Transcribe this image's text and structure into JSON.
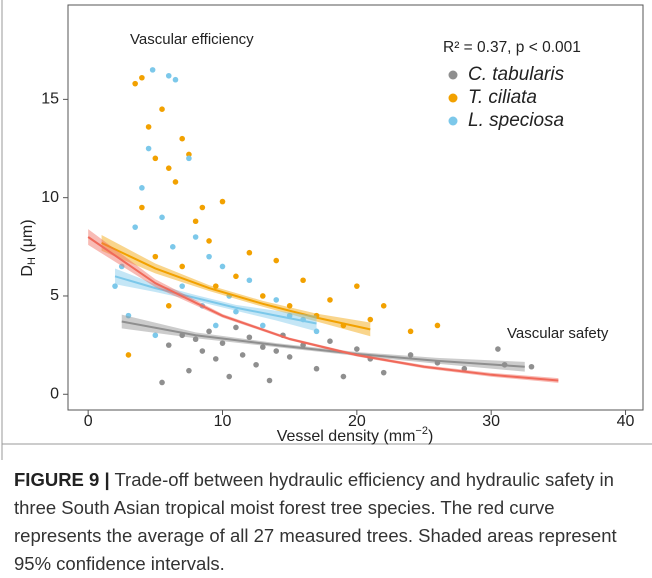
{
  "chart_data": {
    "type": "scatter",
    "x_label": {
      "main": "Vessel density (mm",
      "sup": "−2",
      "end": ")"
    },
    "y_label": {
      "main": "D",
      "sub": "H",
      "unit": " (μm)"
    },
    "annotations": {
      "top_left": "Vascular efficiency",
      "right": "Vascular safety",
      "stats": "R² = 0.37, p < 0.001",
      "stats_color": "#f0695a"
    },
    "xlim": [
      -1.5,
      41.3
    ],
    "ylim": [
      -0.8,
      19.8
    ],
    "xticks": [
      0,
      10,
      20,
      30,
      40
    ],
    "yticks": [
      0,
      5,
      10,
      15
    ],
    "legend": "top-right",
    "series": [
      {
        "name": "C. tabularis",
        "color": "#8f8f8f",
        "x": [
          5.5,
          6,
          7,
          7.5,
          8,
          8.5,
          9,
          9.5,
          10,
          10.5,
          11,
          11.5,
          12,
          12.5,
          13,
          13.5,
          14,
          14.5,
          15,
          16,
          17,
          18,
          19,
          20,
          21,
          22,
          24,
          26,
          28,
          30.5,
          31,
          33
        ],
        "values": [
          0.6,
          2.5,
          3.0,
          1.2,
          2.8,
          2.2,
          3.2,
          1.8,
          2.6,
          0.9,
          3.4,
          2.0,
          2.9,
          1.5,
          2.4,
          0.7,
          2.2,
          3.0,
          1.9,
          2.5,
          1.3,
          2.7,
          0.9,
          2.3,
          1.8,
          1.1,
          2.0,
          1.6,
          1.3,
          2.3,
          1.5,
          1.4
        ]
      },
      {
        "name": "T. ciliata",
        "color": "#f2a100",
        "x": [
          3,
          3.5,
          4,
          4,
          4.5,
          5,
          5,
          5.5,
          6,
          6,
          6.5,
          7,
          7,
          7.5,
          8,
          8.5,
          9,
          9.5,
          10,
          11,
          12,
          13,
          14,
          15,
          16,
          17,
          18,
          19,
          20,
          21,
          22,
          24,
          26
        ],
        "values": [
          2.0,
          15.8,
          16.1,
          9.5,
          13.6,
          12.0,
          7.0,
          14.5,
          11.5,
          4.5,
          10.8,
          13.0,
          6.5,
          12.2,
          8.8,
          9.5,
          7.8,
          5.5,
          9.8,
          6.0,
          7.2,
          5.0,
          6.8,
          4.5,
          5.8,
          4.0,
          4.8,
          3.5,
          5.5,
          3.8,
          4.5,
          3.2,
          3.5
        ]
      },
      {
        "name": "L. speciosa",
        "color": "#7cc8ea",
        "x": [
          2,
          2.5,
          3,
          3.5,
          4,
          4.5,
          4.8,
          5,
          5.5,
          6,
          6.3,
          6.5,
          7,
          7.5,
          8,
          8.5,
          9,
          9.5,
          10,
          10.5,
          11,
          12,
          13,
          14,
          15,
          16,
          17
        ],
        "values": [
          5.5,
          6.5,
          4.0,
          8.5,
          10.5,
          12.5,
          16.5,
          3.0,
          9.0,
          16.2,
          7.5,
          16.0,
          5.5,
          12.0,
          8.0,
          4.5,
          7.0,
          3.5,
          6.5,
          5.0,
          4.2,
          5.8,
          3.5,
          4.8,
          4.0,
          3.8,
          3.2
        ]
      }
    ],
    "fits": [
      {
        "color": "#8f8f8f",
        "x": [
          2.5,
          8,
          14,
          20,
          26,
          32.5
        ],
        "values": [
          3.7,
          3.0,
          2.5,
          2.05,
          1.7,
          1.4
        ],
        "lower": [
          3.35,
          2.85,
          2.4,
          1.95,
          1.55,
          1.15
        ],
        "upper": [
          4.05,
          3.15,
          2.6,
          2.15,
          1.85,
          1.65
        ]
      },
      {
        "color": "#f2a100",
        "x": [
          1,
          5,
          9,
          13,
          17,
          21
        ],
        "values": [
          7.7,
          6.4,
          5.4,
          4.6,
          3.9,
          3.3
        ],
        "lower": [
          7.3,
          6.15,
          5.25,
          4.45,
          3.7,
          2.95
        ],
        "upper": [
          8.1,
          6.65,
          5.55,
          4.75,
          4.1,
          3.65
        ]
      },
      {
        "color": "#7cc8ea",
        "x": [
          2,
          5,
          8,
          11,
          14,
          17
        ],
        "values": [
          6.0,
          5.4,
          4.9,
          4.4,
          4.0,
          3.6
        ],
        "lower": [
          5.6,
          5.2,
          4.75,
          4.25,
          3.75,
          3.2
        ],
        "upper": [
          6.4,
          5.6,
          5.05,
          4.55,
          4.25,
          4.0
        ]
      },
      {
        "color": "#f0695a",
        "x": [
          0,
          5,
          10,
          15,
          20,
          25,
          30,
          35
        ],
        "values": [
          8,
          5.65,
          3.99,
          2.81,
          1.99,
          1.4,
          0.99,
          0.7
        ],
        "lower": [
          7.6,
          5.45,
          3.9,
          2.74,
          1.92,
          1.32,
          0.89,
          0.58
        ],
        "upper": [
          8.4,
          5.85,
          4.08,
          2.88,
          2.06,
          1.48,
          1.09,
          0.82
        ]
      }
    ]
  },
  "caption": {
    "label": "FIGURE 9 |",
    "text": " Trade-off between hydraulic efficiency and hydraulic safety in three South Asian tropical moist forest tree species. The red curve represents the average of all 27 measured trees. Shaded areas represent 95% confidence intervals."
  }
}
